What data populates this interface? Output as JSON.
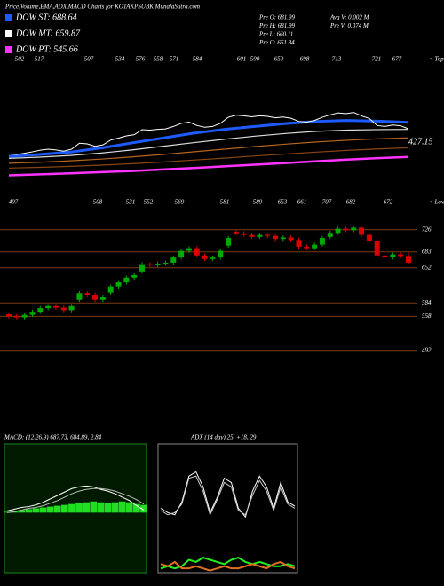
{
  "header": {
    "title": "Price,Volume,EMA,ADX,MACD Charts for KOTAKPSUBK MunafaSutra.com"
  },
  "legend": [
    {
      "label": "DOW ST: 688.64",
      "color": "#1e5bff"
    },
    {
      "label": "DOW MT: 659.87",
      "color": "#ffffff"
    },
    {
      "label": "DOW PT: 545.66",
      "color": "#ff33ff"
    }
  ],
  "info": [
    [
      "Pre O: 681.99",
      "Avg V: 0.002 M"
    ],
    [
      "Pre H: 681.99",
      "Pre V: 0.074 M"
    ],
    [
      "Pre L: 660.11"
    ],
    [
      "Pre C: 661.84"
    ]
  ],
  "chart_data": [
    {
      "type": "line",
      "ylim": [
        369,
        956
      ],
      "tops": [
        "502",
        "517",
        "507",
        "534",
        "576",
        "558",
        "571",
        "584",
        "601",
        "590",
        "659",
        "698",
        "713",
        "721",
        "677"
      ],
      "tops_label": "< Tops",
      "lows": [
        "497",
        "508",
        "531",
        "552",
        "569",
        "581",
        "589",
        "653",
        "661",
        "707",
        "682",
        "672"
      ],
      "lows_label": "< Lows",
      "annotation": "427.15",
      "series": [
        {
          "color": "#1e5bff",
          "values": [
            548,
            556,
            566,
            583,
            604,
            624,
            644,
            660,
            672,
            684,
            693,
            697,
            694,
            689
          ]
        },
        {
          "color": "#dddddd",
          "values": [
            540,
            545,
            552,
            562,
            575,
            590,
            605,
            619,
            632,
            643,
            652,
            657,
            659,
            660
          ]
        },
        {
          "color": "#b5651d",
          "values": [
            520,
            524,
            530,
            537,
            546,
            556,
            567,
            578,
            589,
            599,
            608,
            615,
            621,
            625
          ]
        },
        {
          "color": "#8b4513",
          "values": [
            500,
            503,
            507,
            512,
            518,
            525,
            533,
            541,
            550,
            558,
            566,
            573,
            579,
            584
          ]
        },
        {
          "color": "#ff33ff",
          "values": [
            470,
            474,
            478,
            483,
            488,
            494,
            500,
            507,
            514,
            521,
            528,
            535,
            541,
            546
          ]
        }
      ]
    },
    {
      "type": "candlestick",
      "ylim": [
        483,
        741
      ],
      "yticks": [
        726,
        683,
        652,
        584,
        558,
        492
      ],
      "up_color": "#00aa00",
      "down_color": "#dd0000",
      "grid_color": "#7a3b10",
      "open": [
        562,
        559,
        556,
        561,
        567,
        574,
        578,
        575,
        570,
        590,
        603,
        600,
        590,
        604,
        616,
        624,
        633,
        645,
        659,
        657,
        660,
        662,
        672,
        685,
        690,
        676,
        669,
        672,
        695,
        722,
        719,
        716,
        712,
        716,
        714,
        708,
        711,
        706,
        693,
        690,
        697,
        712,
        720,
        728,
        725,
        730,
        716,
        705,
        676,
        672,
        678,
        675
      ],
      "high": [
        566,
        563,
        565,
        571,
        578,
        582,
        582,
        579,
        582,
        607,
        607,
        604,
        600,
        620,
        628,
        637,
        642,
        663,
        663,
        664,
        666,
        676,
        689,
        694,
        694,
        680,
        676,
        689,
        714,
        726,
        723,
        720,
        720,
        720,
        718,
        715,
        715,
        710,
        697,
        701,
        714,
        724,
        732,
        732,
        734,
        734,
        720,
        709,
        680,
        682,
        682,
        682
      ],
      "low": [
        554,
        552,
        552,
        557,
        563,
        570,
        571,
        566,
        566,
        586,
        596,
        586,
        586,
        600,
        612,
        620,
        629,
        641,
        653,
        653,
        656,
        658,
        668,
        681,
        672,
        665,
        665,
        668,
        691,
        715,
        712,
        708,
        708,
        710,
        704,
        704,
        702,
        689,
        686,
        686,
        693,
        708,
        716,
        721,
        721,
        712,
        701,
        672,
        668,
        668,
        671,
        660
      ],
      "close": [
        558,
        556,
        561,
        567,
        574,
        578,
        575,
        570,
        578,
        603,
        600,
        590,
        596,
        616,
        624,
        633,
        638,
        659,
        657,
        660,
        662,
        672,
        685,
        690,
        676,
        669,
        672,
        685,
        710,
        719,
        716,
        712,
        716,
        714,
        708,
        711,
        706,
        693,
        690,
        697,
        710,
        720,
        728,
        725,
        730,
        716,
        705,
        676,
        672,
        678,
        675,
        662
      ]
    },
    {
      "type": "line",
      "title": "MACD: (12,26,9) 687.73, 684.89, 2.84",
      "ylim": [
        -70,
        80
      ],
      "series": [
        {
          "type": "bar",
          "color": "#22dd22",
          "values": [
            1,
            2,
            3,
            4,
            5,
            6,
            7,
            8,
            9,
            10,
            11,
            12,
            13,
            12,
            11,
            12,
            13,
            12,
            10,
            9
          ]
        },
        {
          "color": "#ffffff",
          "values": [
            2,
            4,
            6,
            7,
            9,
            12,
            16,
            20,
            24,
            28,
            30,
            31,
            30,
            27,
            25,
            22,
            18,
            14,
            8,
            3
          ]
        },
        {
          "color": "#bbbbbb",
          "values": [
            0,
            1,
            3,
            5,
            6,
            8,
            11,
            14,
            18,
            22,
            25,
            27,
            28,
            28,
            27,
            25,
            22,
            19,
            15,
            10
          ]
        }
      ]
    },
    {
      "type": "line",
      "title": "ADX (14 day) 25, +18, 29",
      "ylim": [
        0,
        60
      ],
      "series": [
        {
          "color": "#ffffff",
          "values": [
            30,
            28,
            27,
            33,
            45,
            47,
            40,
            28,
            35,
            44,
            42,
            30,
            26,
            38,
            45,
            40,
            30,
            42,
            33,
            31
          ]
        },
        {
          "color": "#cccccc",
          "values": [
            29,
            27,
            28,
            32,
            44,
            45,
            38,
            27,
            34,
            42,
            40,
            29,
            27,
            36,
            43,
            38,
            29,
            40,
            32,
            30
          ]
        },
        {
          "color": "#22ee22",
          "values": [
            2,
            3,
            2,
            3,
            6,
            5,
            7,
            6,
            5,
            4,
            6,
            7,
            5,
            4,
            5,
            4,
            3,
            3,
            4,
            3
          ]
        },
        {
          "color": "#e07020",
          "values": [
            4,
            3,
            5,
            2,
            2,
            3,
            2,
            1,
            2,
            3,
            2,
            2,
            3,
            4,
            3,
            2,
            4,
            5,
            3,
            2
          ]
        }
      ]
    }
  ]
}
